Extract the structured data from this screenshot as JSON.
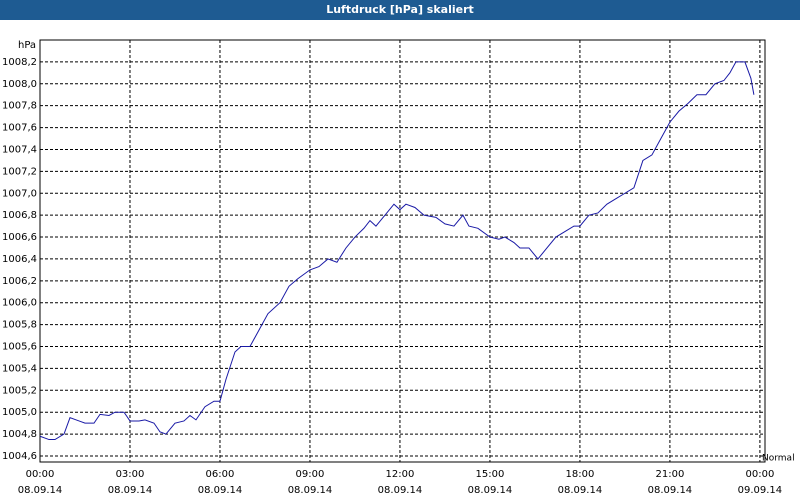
{
  "chart_data": {
    "type": "line",
    "title": "Luftdruck [hPa] skaliert",
    "ylabel": "hPa",
    "annotation": "Normal",
    "x": [
      0,
      0.3,
      0.5,
      0.8,
      1,
      1.3,
      1.5,
      1.8,
      2,
      2.3,
      2.5,
      2.8,
      3,
      3.3,
      3.5,
      3.8,
      4,
      4.2,
      4.5,
      4.8,
      5,
      5.2,
      5.5,
      5.8,
      6,
      6.2,
      6.5,
      6.7,
      7,
      7.3,
      7.6,
      8,
      8.3,
      8.6,
      9,
      9.3,
      9.6,
      9.9,
      10.2,
      10.5,
      10.8,
      11,
      11.2,
      11.5,
      11.8,
      12,
      12.2,
      12.5,
      12.8,
      13.2,
      13.5,
      13.8,
      14.1,
      14.3,
      14.6,
      15,
      15.3,
      15.5,
      15.8,
      16,
      16.3,
      16.6,
      16.9,
      17.2,
      17.5,
      17.8,
      18,
      18.3,
      18.6,
      18.9,
      19.2,
      19.5,
      19.8,
      20.1,
      20.4,
      20.7,
      21,
      21.3,
      21.6,
      21.9,
      22.2,
      22.5,
      22.8,
      23,
      23.2,
      23.5,
      23.7,
      23.8
    ],
    "series": [
      {
        "color": "#1a1aa6",
        "values": [
          1004.78,
          1004.75,
          1004.75,
          1004.8,
          1004.95,
          1004.92,
          1004.9,
          1004.9,
          1004.98,
          1004.97,
          1005.0,
          1005.0,
          1004.92,
          1004.92,
          1004.93,
          1004.9,
          1004.82,
          1004.8,
          1004.9,
          1004.92,
          1004.97,
          1004.93,
          1005.05,
          1005.1,
          1005.1,
          1005.3,
          1005.55,
          1005.6,
          1005.6,
          1005.75,
          1005.9,
          1006.0,
          1006.15,
          1006.22,
          1006.3,
          1006.33,
          1006.4,
          1006.37,
          1006.5,
          1006.6,
          1006.68,
          1006.75,
          1006.7,
          1006.8,
          1006.9,
          1006.85,
          1006.9,
          1006.87,
          1006.8,
          1006.78,
          1006.72,
          1006.7,
          1006.8,
          1006.7,
          1006.68,
          1006.6,
          1006.58,
          1006.6,
          1006.55,
          1006.5,
          1006.5,
          1006.4,
          1006.5,
          1006.6,
          1006.65,
          1006.7,
          1006.7,
          1006.8,
          1006.82,
          1006.9,
          1006.95,
          1007.0,
          1007.05,
          1007.3,
          1007.35,
          1007.5,
          1007.65,
          1007.75,
          1007.82,
          1007.9,
          1007.9,
          1008.0,
          1008.03,
          1008.1,
          1008.2,
          1008.2,
          1008.05,
          1007.9
        ]
      }
    ],
    "xlim": [
      0,
      24.17
    ],
    "xticks": [
      {
        "value": 0,
        "label": "00:00"
      },
      {
        "value": 3,
        "label": "03:00"
      },
      {
        "value": 6,
        "label": "06:00"
      },
      {
        "value": 9,
        "label": "09:00"
      },
      {
        "value": 12,
        "label": "12:00"
      },
      {
        "value": 15,
        "label": "15:00"
      },
      {
        "value": 18,
        "label": "18:00"
      },
      {
        "value": 21,
        "label": "21:00"
      },
      {
        "value": 24,
        "label": "00:00"
      }
    ],
    "xtick_dates": [
      "08.09.14",
      "08.09.14",
      "08.09.14",
      "08.09.14",
      "08.09.14",
      "08.09.14",
      "08.09.14",
      "08.09.14",
      "09.09.14"
    ],
    "ylim": [
      1004.545,
      1008.4
    ],
    "yticks": [
      {
        "value": 1004.6,
        "label": "1004,6"
      },
      {
        "value": 1004.8,
        "label": "1004,8"
      },
      {
        "value": 1005.0,
        "label": "1005,0"
      },
      {
        "value": 1005.2,
        "label": "1005,2"
      },
      {
        "value": 1005.4,
        "label": "1005,4"
      },
      {
        "value": 1005.6,
        "label": "1005,6"
      },
      {
        "value": 1005.8,
        "label": "1005,8"
      },
      {
        "value": 1006.0,
        "label": "1006,0"
      },
      {
        "value": 1006.2,
        "label": "1006,2"
      },
      {
        "value": 1006.4,
        "label": "1006,4"
      },
      {
        "value": 1006.6,
        "label": "1006,6"
      },
      {
        "value": 1006.8,
        "label": "1006,8"
      },
      {
        "value": 1007.0,
        "label": "1007,0"
      },
      {
        "value": 1007.2,
        "label": "1007,2"
      },
      {
        "value": 1007.4,
        "label": "1007,4"
      },
      {
        "value": 1007.6,
        "label": "1007,6"
      },
      {
        "value": 1007.8,
        "label": "1007,8"
      },
      {
        "value": 1008.0,
        "label": "1008,0"
      },
      {
        "value": 1008.2,
        "label": "1008,2"
      }
    ],
    "grid": true
  }
}
